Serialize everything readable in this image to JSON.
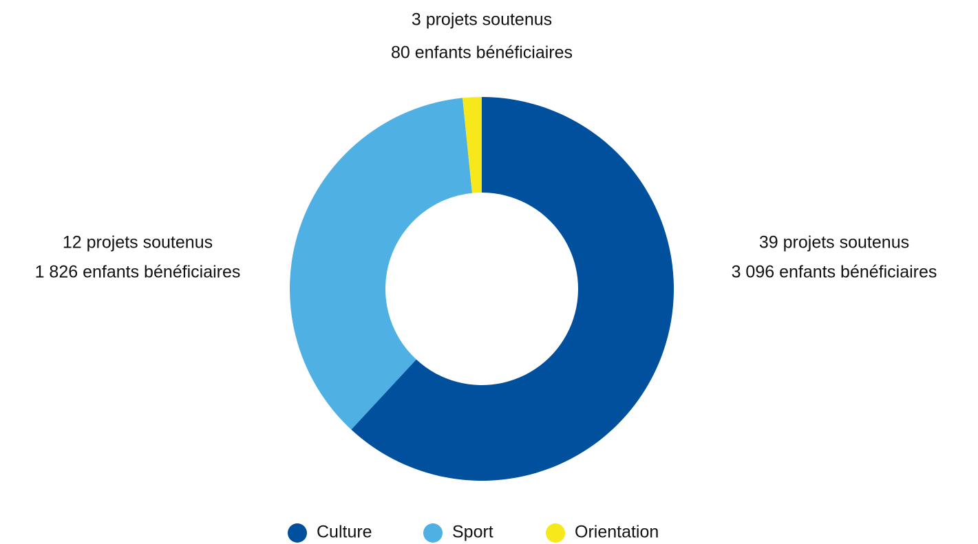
{
  "chart_data": {
    "type": "donut",
    "categories": [
      "Culture",
      "Sport",
      "Orientation"
    ],
    "values": [
      3096,
      1826,
      80
    ],
    "value_labels": [
      "3 096 enfants bénéficiaires",
      "1 826 enfants bénéficiaires",
      "80 enfants bénéficiaires"
    ],
    "project_labels": [
      "39 projets soutenus",
      "12 projets soutenus",
      "3 projets soutenus"
    ],
    "colors": [
      "#00509e",
      "#4eb0e3",
      "#f7e81b"
    ],
    "legend": "bottom"
  }
}
